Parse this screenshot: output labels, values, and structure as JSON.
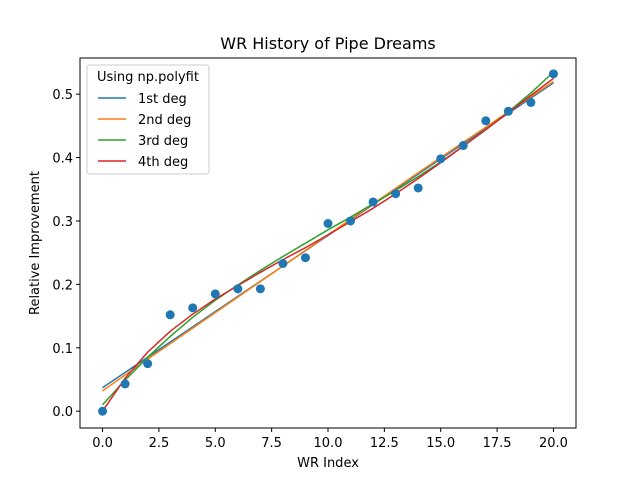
{
  "chart_data": {
    "type": "scatter",
    "title": "WR History of Pipe Dreams",
    "xlabel": "WR Index",
    "ylabel": "Relative Improvement",
    "xlim": [
      -1.0,
      21.0
    ],
    "ylim": [
      -0.0265,
      0.557
    ],
    "grid": false,
    "xticks": [
      0.0,
      2.5,
      5.0,
      7.5,
      10.0,
      12.5,
      15.0,
      17.5,
      20.0
    ],
    "xtick_labels": [
      "0.0",
      "2.5",
      "5.0",
      "7.5",
      "10.0",
      "12.5",
      "15.0",
      "17.5",
      "20.0"
    ],
    "yticks": [
      0.0,
      0.1,
      0.2,
      0.3,
      0.4,
      0.5
    ],
    "ytick_labels": [
      "0.0",
      "0.1",
      "0.2",
      "0.3",
      "0.4",
      "0.5"
    ],
    "points": {
      "color": "#1f77b4",
      "x": [
        0,
        1,
        2,
        3,
        4,
        5,
        6,
        7,
        8,
        9,
        10,
        11,
        12,
        13,
        14,
        15,
        16,
        17,
        18,
        19,
        20
      ],
      "y": [
        0.0,
        0.043,
        0.075,
        0.152,
        0.163,
        0.185,
        0.193,
        0.193,
        0.233,
        0.242,
        0.296,
        0.3,
        0.33,
        0.343,
        0.352,
        0.398,
        0.419,
        0.458,
        0.473,
        0.487,
        0.532
      ]
    },
    "legend": {
      "title": "Using np.polyfit",
      "position": "upper-left"
    },
    "series": [
      {
        "name": "1st deg",
        "color": "#1f77b4",
        "x": [
          0,
          2,
          4,
          6,
          8,
          10,
          12,
          14,
          16,
          18,
          20
        ],
        "y": [
          0.037,
          0.085,
          0.133,
          0.181,
          0.229,
          0.277,
          0.326,
          0.374,
          0.422,
          0.47,
          0.518
        ]
      },
      {
        "name": "2nd deg",
        "color": "#ff7f0e",
        "x": [
          0,
          2,
          4,
          6,
          8,
          10,
          12,
          14,
          16,
          18,
          20
        ],
        "y": [
          0.032,
          0.082,
          0.131,
          0.18,
          0.229,
          0.278,
          0.327,
          0.376,
          0.424,
          0.472,
          0.52
        ]
      },
      {
        "name": "3rd deg",
        "color": "#2ca02c",
        "x": [
          0,
          1,
          2,
          3,
          4,
          5,
          6,
          7,
          8,
          9,
          10,
          11,
          12,
          13,
          14,
          15,
          16,
          17,
          18,
          19,
          20
        ],
        "y": [
          0.01,
          0.049,
          0.085,
          0.118,
          0.148,
          0.175,
          0.199,
          0.222,
          0.244,
          0.265,
          0.286,
          0.306,
          0.327,
          0.348,
          0.37,
          0.393,
          0.418,
          0.444,
          0.472,
          0.502,
          0.535
        ]
      },
      {
        "name": "4th deg",
        "color": "#d62728",
        "x": [
          0,
          1,
          2,
          3,
          4,
          5,
          6,
          7,
          8,
          9,
          10,
          11,
          12,
          13,
          14,
          15,
          16,
          17,
          18,
          19,
          20
        ],
        "y": [
          0.0,
          0.052,
          0.093,
          0.126,
          0.153,
          0.177,
          0.198,
          0.219,
          0.239,
          0.258,
          0.278,
          0.299,
          0.32,
          0.343,
          0.367,
          0.392,
          0.418,
          0.444,
          0.471,
          0.498,
          0.525
        ]
      }
    ]
  }
}
